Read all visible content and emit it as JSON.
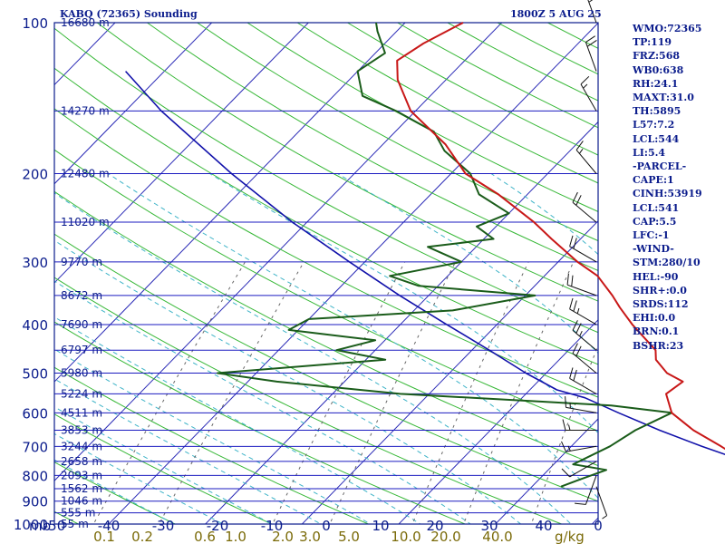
{
  "header": {
    "title": "KABQ (72365) Sounding",
    "datetime": "1800Z  5 AUG 25"
  },
  "indices": [
    "WMO:72365",
    "TP:119",
    "FRZ:568",
    "WB0:638",
    "RH:24.1",
    "MAXT:31.0",
    "TH:5895",
    "L57:7.2",
    "LCL:544",
    "LI:5.4",
    "-PARCEL-",
    "CAPE:1",
    "CINH:53919",
    "LCL:541",
    "CAP:5.5",
    "LFC:-1",
    "-WIND-",
    "STM:280/10",
    "HEL:-90",
    "SHR+:0.0",
    "SRDS:112",
    "EHI:0.0",
    "BRN:0.1",
    "BSHR:23"
  ],
  "colors": {
    "frame": "#0b1c8c",
    "isobar": "#1b1bc0",
    "isotherm": "#2a2ab6",
    "dry_adiabat": "#38b838",
    "moist_adiabat": "#3fb4c8",
    "mixing_ratio": "#666666",
    "temperature": "#c81818",
    "dewpoint": "#1a5c1a",
    "parcel": "#1111aa",
    "wind_barb": "#111111",
    "label": "#0b1c8c",
    "mixing_label": "#7a6a08"
  },
  "chart_data": {
    "type": "skew-t",
    "yscale": "log",
    "pressure_range": [
      1000,
      100
    ],
    "temperature_range": [
      -50,
      0
    ],
    "pressure_unit": "mb",
    "mixing_ratio_unit": "g/kg",
    "pressure_ticks": [
      100,
      200,
      300,
      400,
      500,
      600,
      700,
      800,
      900,
      1000
    ],
    "temperature_ticks": [
      -50,
      -40,
      -30,
      -20,
      -10,
      0,
      10,
      20,
      30,
      40,
      0
    ],
    "temperature_tick_labels": [
      "-50",
      "-40",
      "-30",
      "-20",
      "-10",
      "0",
      "10",
      "20",
      "30",
      "40",
      "0"
    ],
    "mixing_ratio_labels": [
      "0.1",
      "0.2",
      "0.6",
      "1.0",
      "2.0",
      "3.0",
      "5.0",
      "10.0",
      "20.0",
      "40.0"
    ],
    "mixing_ratio_values": [
      0.1,
      0.2,
      0.6,
      1.0,
      2.0,
      3.0,
      5.0,
      10.0,
      20.0,
      40.0
    ],
    "height_labels": [
      {
        "p": 100,
        "label": "16680 m"
      },
      {
        "p": 150,
        "label": "14270 m"
      },
      {
        "p": 200,
        "label": "12480 m"
      },
      {
        "p": 250,
        "label": "11020 m"
      },
      {
        "p": 300,
        "label": "9770 m"
      },
      {
        "p": 350,
        "label": "8672 m"
      },
      {
        "p": 400,
        "label": "7690 m"
      },
      {
        "p": 450,
        "label": "6797 m"
      },
      {
        "p": 500,
        "label": "5980 m"
      },
      {
        "p": 550,
        "label": "5224 m"
      },
      {
        "p": 600,
        "label": "4511 m"
      },
      {
        "p": 650,
        "label": "3853 m"
      },
      {
        "p": 700,
        "label": "3244 m"
      },
      {
        "p": 750,
        "label": "2658 m"
      },
      {
        "p": 800,
        "label": "2093 m"
      },
      {
        "p": 850,
        "label": "1562 m"
      },
      {
        "p": 900,
        "label": "1046 m"
      },
      {
        "p": 950,
        "label": "555 m"
      },
      {
        "p": 1000,
        "label": "55 m"
      }
    ],
    "temperature_profile": [
      [
        842,
        29.5
      ],
      [
        800,
        24.5
      ],
      [
        750,
        19.5
      ],
      [
        700,
        15.5
      ],
      [
        650,
        11
      ],
      [
        600,
        7
      ],
      [
        550,
        4.5
      ],
      [
        520,
        5
      ],
      [
        500,
        2.5
      ],
      [
        470,
        0
      ],
      [
        450,
        -1
      ],
      [
        400,
        -6
      ],
      [
        370,
        -9
      ],
      [
        350,
        -11
      ],
      [
        320,
        -14.5
      ],
      [
        300,
        -18
      ],
      [
        270,
        -23
      ],
      [
        250,
        -26.5
      ],
      [
        220,
        -33
      ],
      [
        200,
        -38.5
      ],
      [
        175,
        -43.5
      ],
      [
        150,
        -50.5
      ],
      [
        130,
        -55
      ],
      [
        119,
        -57
      ],
      [
        110,
        -56
      ],
      [
        100,
        -54
      ]
    ],
    "dewpoint_profile": [
      [
        842,
        3
      ],
      [
        820,
        4
      ],
      [
        780,
        6
      ],
      [
        760,
        2
      ],
      [
        700,
        4
      ],
      [
        650,
        5
      ],
      [
        600,
        7
      ],
      [
        580,
        0
      ],
      [
        570,
        -7.5
      ],
      [
        550,
        -23
      ],
      [
        520,
        -37
      ],
      [
        500,
        -44
      ],
      [
        470,
        -28
      ],
      [
        450,
        -34
      ],
      [
        430,
        -31
      ],
      [
        410,
        -41
      ],
      [
        390,
        -40
      ],
      [
        375,
        -26
      ],
      [
        350,
        -19
      ],
      [
        335,
        -32
      ],
      [
        320,
        -36
      ],
      [
        300,
        -30
      ],
      [
        280,
        -35
      ],
      [
        270,
        -29
      ],
      [
        255,
        -32
      ],
      [
        240,
        -30
      ],
      [
        220,
        -35
      ],
      [
        200,
        -38
      ],
      [
        180,
        -43
      ],
      [
        165,
        -46
      ],
      [
        150,
        -52
      ],
      [
        140,
        -57
      ],
      [
        125,
        -60
      ],
      [
        115,
        -59
      ],
      [
        104,
        -62
      ],
      [
        100,
        -63
      ]
    ],
    "parcel_profile": [
      [
        842,
        31
      ],
      [
        800,
        25.5
      ],
      [
        750,
        19.5
      ],
      [
        700,
        13.5
      ],
      [
        650,
        7.5
      ],
      [
        600,
        1.5
      ],
      [
        560,
        -3.5
      ],
      [
        540,
        -7.2
      ],
      [
        500,
        -12.1
      ],
      [
        450,
        -18.2
      ],
      [
        400,
        -25.2
      ],
      [
        350,
        -33
      ],
      [
        300,
        -41.6
      ],
      [
        250,
        -51.5
      ],
      [
        200,
        -62.7
      ],
      [
        150,
        -76.3
      ],
      [
        125,
        -84
      ]
    ],
    "wind_profile": [
      {
        "p": 842,
        "dir": 160,
        "spd": 5
      },
      {
        "p": 800,
        "dir": 200,
        "spd": 10
      },
      {
        "p": 750,
        "dir": 240,
        "spd": 10
      },
      {
        "p": 700,
        "dir": 260,
        "spd": 15
      },
      {
        "p": 650,
        "dir": 270,
        "spd": 15
      },
      {
        "p": 600,
        "dir": 280,
        "spd": 15
      },
      {
        "p": 550,
        "dir": 300,
        "spd": 20
      },
      {
        "p": 500,
        "dir": 310,
        "spd": 20
      },
      {
        "p": 450,
        "dir": 310,
        "spd": 25
      },
      {
        "p": 400,
        "dir": 300,
        "spd": 25
      },
      {
        "p": 350,
        "dir": 290,
        "spd": 20
      },
      {
        "p": 300,
        "dir": 300,
        "spd": 20
      },
      {
        "p": 250,
        "dir": 310,
        "spd": 20
      },
      {
        "p": 200,
        "dir": 320,
        "spd": 15
      },
      {
        "p": 150,
        "dir": 330,
        "spd": 15
      },
      {
        "p": 125,
        "dir": 340,
        "spd": 20
      },
      {
        "p": 100,
        "dir": 340,
        "spd": 25
      }
    ]
  }
}
